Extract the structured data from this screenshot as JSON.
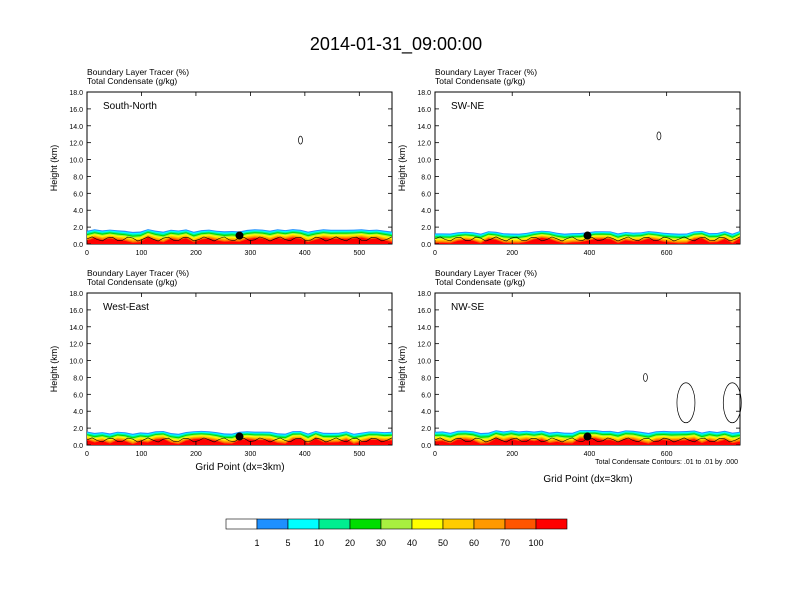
{
  "title": "2014-01-31_09:00:00",
  "panel_header": {
    "line1": "Boundary Layer Tracer   (%)",
    "line2": "Total Condensate   (g/kg)"
  },
  "ylabel": "Height (km)",
  "xlabel": "Grid Point (dx=3km)",
  "contour_note": "Total Condensate Contours: .01 to .01 by .000",
  "colorbar": {
    "colors": [
      "#ffffff",
      "#1e90ff",
      "#00ffff",
      "#00ee90",
      "#00dd00",
      "#a8f040",
      "#ffff00",
      "#ffcc00",
      "#ff9900",
      "#ff5500",
      "#ff0000"
    ],
    "labels": [
      "1",
      "5",
      "10",
      "20",
      "30",
      "40",
      "50",
      "60",
      "70",
      "100"
    ]
  },
  "chart_data": [
    {
      "type": "heatmap",
      "name": "South-North",
      "xlim": [
        0,
        560
      ],
      "ylim": [
        0,
        18
      ],
      "x_ticks": [
        0,
        100,
        200,
        300,
        400,
        500
      ],
      "y_ticks": [
        "0.0",
        "2.0",
        "4.0",
        "6.0",
        "8.0",
        "10.0",
        "12.0",
        "14.0",
        "16.0",
        "18.0"
      ],
      "marker_x": 280,
      "marker_y": 1.0,
      "bl_top_km": 1.6,
      "cloud_contours": [
        {
          "x": 392,
          "y": 12.3
        }
      ]
    },
    {
      "type": "heatmap",
      "name": "SW-NE",
      "xlim": [
        0,
        790
      ],
      "ylim": [
        0,
        18
      ],
      "x_ticks": [
        0,
        200,
        400,
        600
      ],
      "y_ticks": [
        "0.0",
        "2.0",
        "4.0",
        "6.0",
        "8.0",
        "10.0",
        "12.0",
        "14.0",
        "16.0",
        "18.0"
      ],
      "marker_x": 395,
      "marker_y": 1.0,
      "bl_top_km": 1.4,
      "cloud_contours": [
        {
          "x": 580,
          "y": 12.8
        }
      ]
    },
    {
      "type": "heatmap",
      "name": "West-East",
      "xlim": [
        0,
        560
      ],
      "ylim": [
        0,
        18
      ],
      "x_ticks": [
        0,
        100,
        200,
        300,
        400,
        500
      ],
      "y_ticks": [
        "0.0",
        "2.0",
        "4.0",
        "6.0",
        "8.0",
        "10.0",
        "12.0",
        "14.0",
        "16.0",
        "18.0"
      ],
      "marker_x": 280,
      "marker_y": 1.0,
      "bl_top_km": 1.5,
      "cloud_contours": []
    },
    {
      "type": "heatmap",
      "name": "NW-SE",
      "xlim": [
        0,
        790
      ],
      "ylim": [
        0,
        18
      ],
      "x_ticks": [
        0,
        200,
        400,
        600
      ],
      "y_ticks": [
        "0.0",
        "2.0",
        "4.0",
        "6.0",
        "8.0",
        "10.0",
        "12.0",
        "14.0",
        "16.0",
        "18.0"
      ],
      "marker_x": 395,
      "marker_y": 1.0,
      "bl_top_km": 1.6,
      "cloud_contours": [
        {
          "x": 545,
          "y": 8.0
        },
        {
          "x": 650,
          "y": 5.0
        },
        {
          "x": 770,
          "y": 5.0
        }
      ]
    }
  ]
}
